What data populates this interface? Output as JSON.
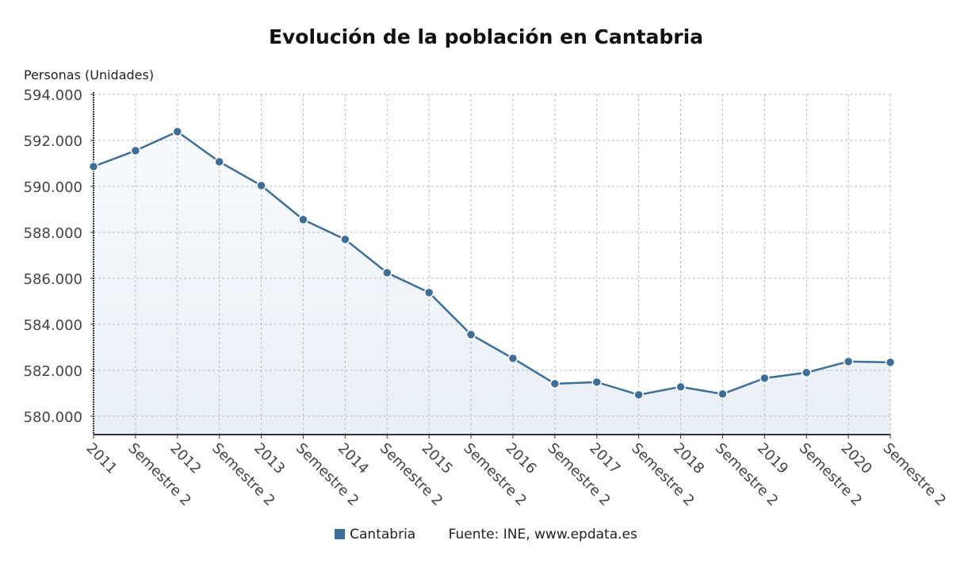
{
  "chart_data": {
    "type": "area",
    "title": "Evolución de la población en Cantabria",
    "ylabel": "Personas (Unidades)",
    "xlabel": "",
    "categories": [
      "2011",
      "Semestre 2",
      "2012",
      "Semestre 2",
      "2013",
      "Semestre 2",
      "2014",
      "Semestre 2",
      "2015",
      "Semestre 2",
      "2016",
      "Semestre 2",
      "2017",
      "Semestre 2",
      "2018",
      "Semestre 2",
      "2019",
      "Semestre 2",
      "2020",
      "Semestre 2"
    ],
    "series": [
      {
        "name": "Cantabria",
        "values": [
          590862,
          591552,
          592379,
          591069,
          590034,
          588552,
          587690,
          586241,
          585379,
          583552,
          582517,
          581414,
          581483,
          580931,
          581276,
          580966,
          581655,
          581897,
          582379,
          582345
        ]
      }
    ],
    "yticks": [
      580000,
      582000,
      584000,
      586000,
      588000,
      590000,
      592000,
      594000
    ],
    "ytick_labels": [
      "580.000",
      "582.000",
      "584.000",
      "586.000",
      "588.000",
      "590.000",
      "592.000",
      "594.000"
    ],
    "ylim": [
      579200,
      594000
    ],
    "grid": true,
    "legend": "bottom",
    "color": "#3d6f98"
  },
  "source": "Fuente: INE, www.epdata.es"
}
